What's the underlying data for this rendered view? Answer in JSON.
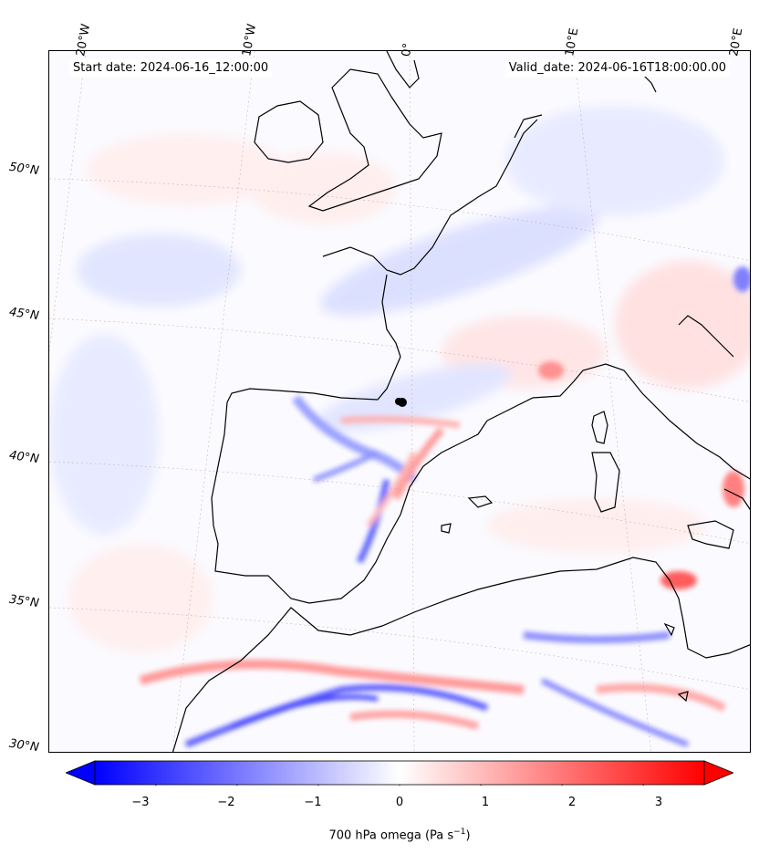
{
  "header": {
    "start_date": "Start date: 2024-06-16_12:00:00",
    "valid_date": "Valid_date: 2024-06-16T18:00:00.00"
  },
  "axes": {
    "lon_labels": [
      "20°W",
      "10°W",
      "0°",
      "10°E",
      "20°E"
    ],
    "lat_labels": [
      "50°N",
      "45°N",
      "40°N",
      "35°N",
      "30°N"
    ]
  },
  "colorbar": {
    "title": "700 hPa omega (Pa s",
    "title_exp": "−1",
    "title_end": ")",
    "cmap": "bwr",
    "min": -3.75,
    "max": 3.75,
    "ticks": [
      "−3",
      "−2",
      "−1",
      "0",
      "1",
      "2",
      "3"
    ],
    "tick_values": [
      -3,
      -2,
      -1,
      0,
      1,
      2,
      3
    ],
    "low_color": "#0000ff",
    "mid_color": "#ffffff",
    "high_color": "#ff0000"
  },
  "map": {
    "extend": "both",
    "coastline_color": "#000000"
  }
}
